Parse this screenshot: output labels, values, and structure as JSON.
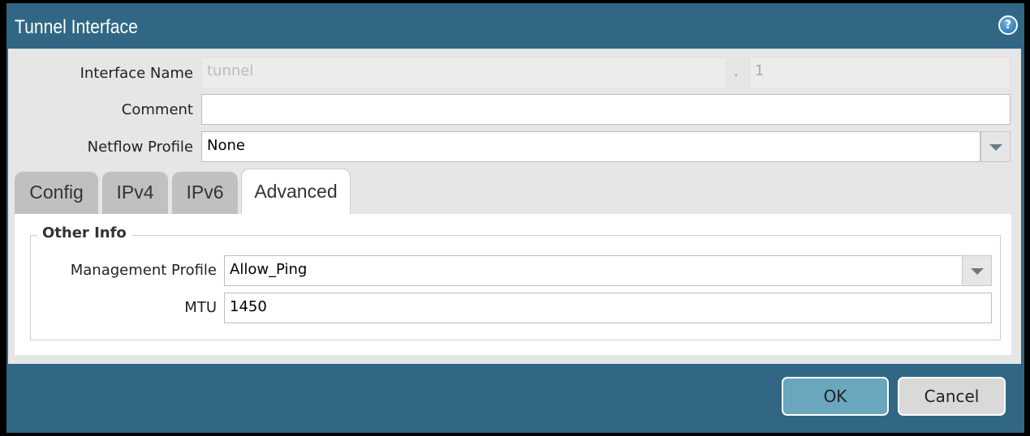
{
  "dialog": {
    "title": "Tunnel Interface",
    "help_icon": "help-icon"
  },
  "form": {
    "interface_name_label": "Interface Name",
    "interface_name_value": "tunnel",
    "separator": ".",
    "interface_number": "1",
    "comment_label": "Comment",
    "comment_value": "",
    "netflow_label": "Netflow Profile",
    "netflow_value": "None"
  },
  "tabs": [
    {
      "label": "Config"
    },
    {
      "label": "IPv4"
    },
    {
      "label": "IPv6"
    },
    {
      "label": "Advanced",
      "active": true
    }
  ],
  "advanced": {
    "section_title": "Other Info",
    "mgmt_label": "Management Profile",
    "mgmt_value": "Allow_Ping",
    "mtu_label": "MTU",
    "mtu_value": "1450"
  },
  "footer": {
    "ok": "OK",
    "cancel": "Cancel"
  }
}
